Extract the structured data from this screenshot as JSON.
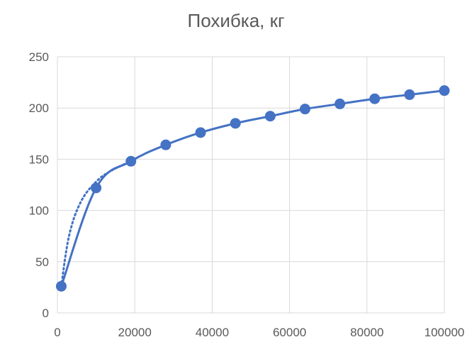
{
  "chart_data": {
    "type": "scatter",
    "title": "Похибка, кг",
    "xlabel": "",
    "ylabel": "",
    "xlim": [
      0,
      100000
    ],
    "ylim": [
      0,
      250
    ],
    "x_ticks": [
      0,
      20000,
      40000,
      60000,
      80000,
      100000
    ],
    "y_ticks": [
      0,
      50,
      100,
      150,
      200,
      250
    ],
    "grid": true,
    "legend": "none",
    "series": [
      {
        "style": "smooth line with markers",
        "color": "#4472C4",
        "x": [
          1000,
          10000,
          19000,
          28000,
          37000,
          46000,
          55000,
          64000,
          73000,
          82000,
          91000,
          100000
        ],
        "y": [
          26,
          122,
          148,
          164,
          176,
          185,
          192,
          199,
          204,
          209,
          213,
          217
        ]
      }
    ],
    "trendline": {
      "style": "dotted",
      "kind": "logarithmic",
      "color": "#4472C4",
      "x": [
        1000,
        3000,
        6000,
        10000,
        14000,
        19000
      ],
      "y": [
        26,
        75,
        108,
        128,
        139,
        148
      ]
    }
  }
}
